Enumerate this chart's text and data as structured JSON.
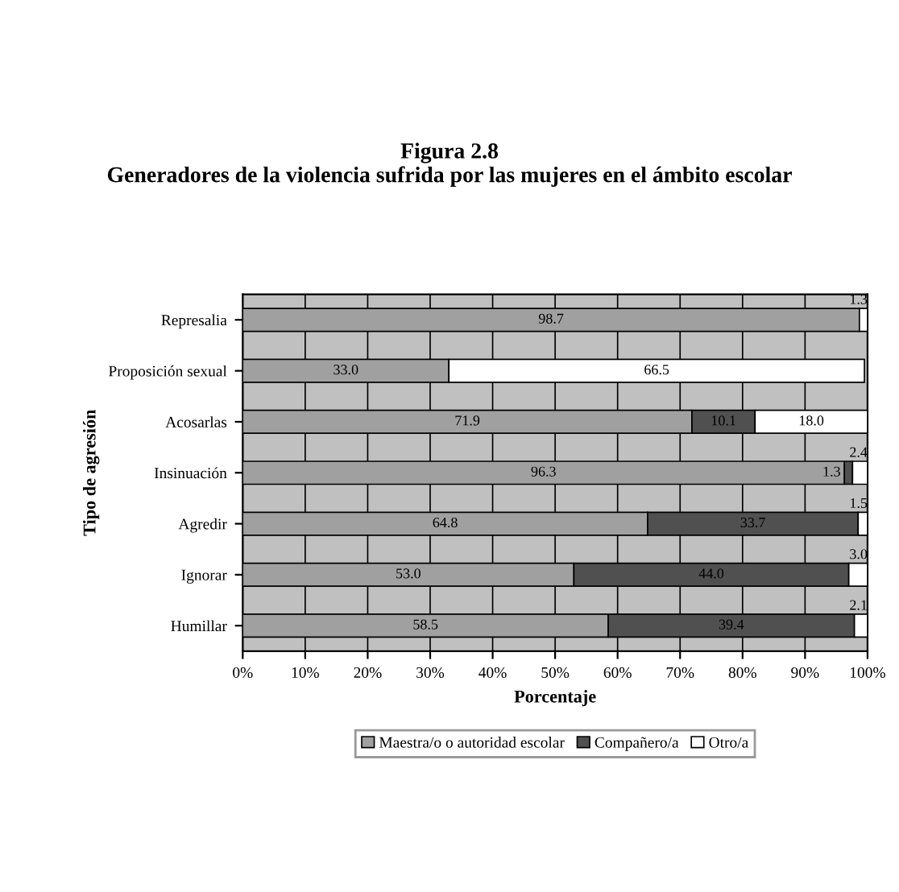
{
  "chart_data": {
    "type": "bar",
    "orientation": "horizontal",
    "stacked": true,
    "title": "Figura 2.8\nGeneradores de la violencia sufrida por las mujeres en el ámbito escolar",
    "xlabel": "Porcentaje",
    "ylabel": "Tipo de agresión",
    "categories": [
      "Represalia",
      "Proposición sexual",
      "Acosarlas",
      "Insinuación",
      "Agredir",
      "Ignorar",
      "Humillar"
    ],
    "series": [
      {
        "name": "Maestra/o o autoridad escolar",
        "color": "#a0a0a0",
        "values": [
          98.7,
          33.0,
          71.9,
          96.3,
          64.8,
          53.0,
          58.5
        ],
        "value_labels": [
          "98.7",
          "33.0",
          "71.9",
          "96.3",
          "64.8",
          "53.0",
          "58.5"
        ]
      },
      {
        "name": "Compañero/a",
        "color": "#505050",
        "values": [
          null,
          null,
          10.1,
          1.3,
          33.7,
          44.0,
          39.4
        ],
        "value_labels": [
          null,
          null,
          "10.1",
          "1.3",
          "33.7",
          "44.0",
          "39.4"
        ]
      },
      {
        "name": "Otro/a",
        "color": "#ffffff",
        "values": [
          1.3,
          66.5,
          18.0,
          2.4,
          1.5,
          3.0,
          2.1
        ],
        "value_labels": [
          "1.3",
          "66.5",
          "18.0",
          "2.4",
          "1.5",
          "3.0",
          "2.1"
        ]
      }
    ],
    "xlim": [
      0,
      100
    ],
    "xticks": [
      {
        "value": 0,
        "label": "0%"
      },
      {
        "value": 10,
        "label": "10%"
      },
      {
        "value": 20,
        "label": "20%"
      },
      {
        "value": 30,
        "label": "30%"
      },
      {
        "value": 40,
        "label": "40%"
      },
      {
        "value": 50,
        "label": "50%"
      },
      {
        "value": 60,
        "label": "60%"
      },
      {
        "value": 70,
        "label": "70%"
      },
      {
        "value": 80,
        "label": "80%"
      },
      {
        "value": 90,
        "label": "90%"
      },
      {
        "value": 100,
        "label": "100%"
      }
    ],
    "grid": "x",
    "legend": "bottom"
  }
}
